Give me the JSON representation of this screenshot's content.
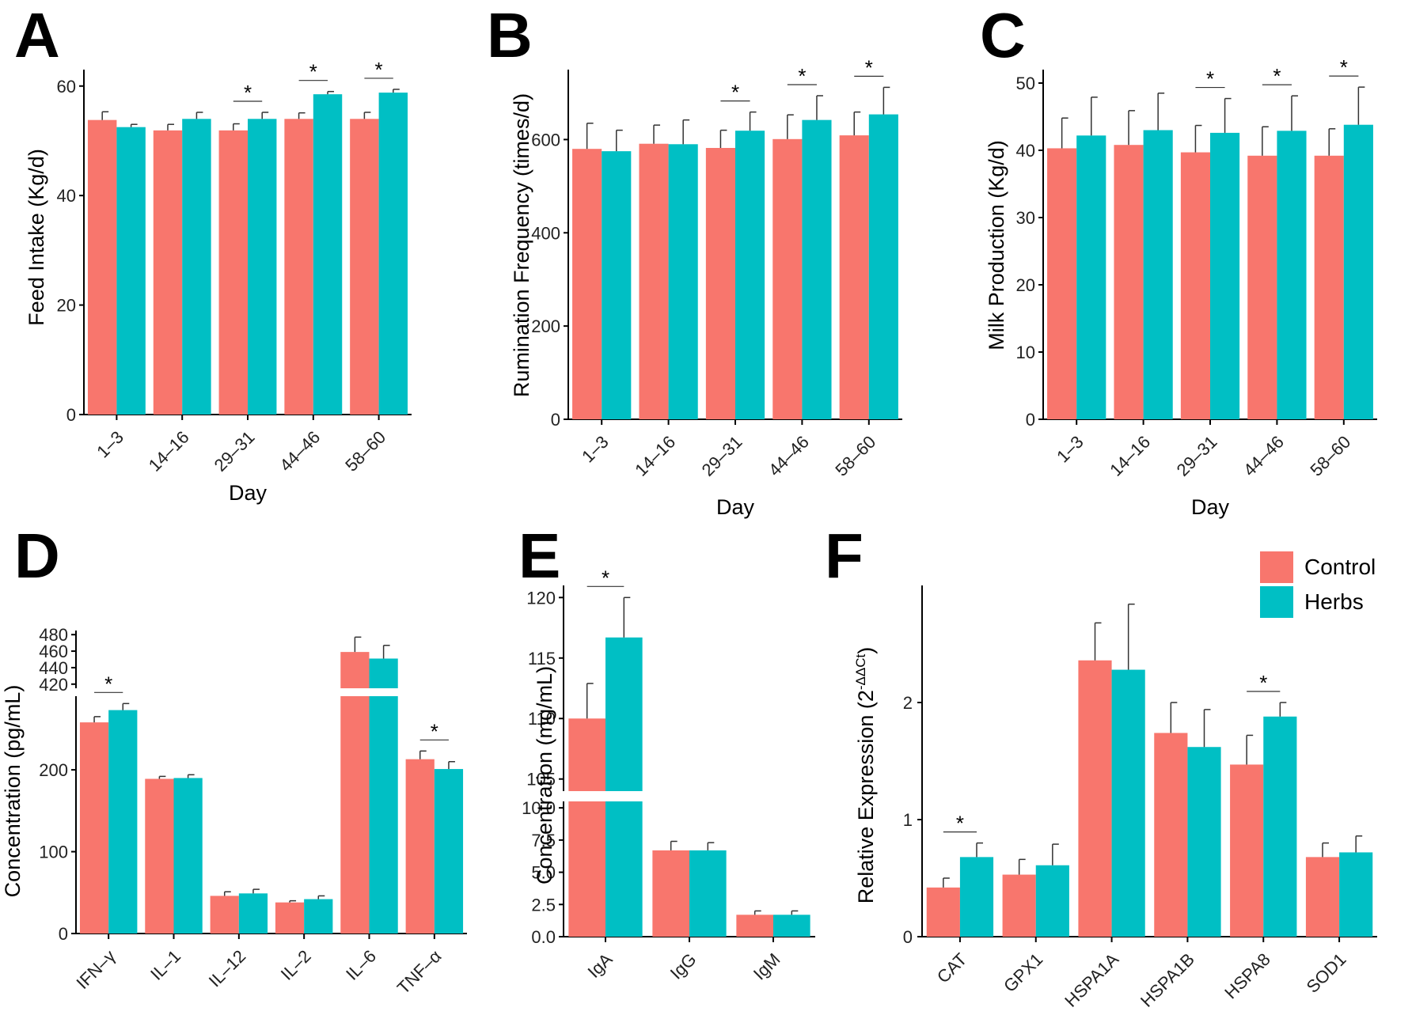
{
  "legend": {
    "position": "top-right",
    "items": [
      {
        "label": "Control",
        "color": "#F8766D"
      },
      {
        "label": "Herbs",
        "color": "#00BFC4"
      }
    ]
  },
  "chart_data": [
    {
      "panel": "A",
      "type": "bar",
      "xlabel": "Day",
      "ylabel": "Feed Intake (Kg/d)",
      "categories": [
        "1–3",
        "14–16",
        "29–31",
        "44–46",
        "58–60"
      ],
      "ylim": [
        0,
        63
      ],
      "yticks": [
        0,
        20,
        40,
        60
      ],
      "tick_labels_rotated": true,
      "series": [
        {
          "name": "Control",
          "values": [
            53.8,
            51.9,
            51.9,
            54.0,
            54.0
          ],
          "errors": [
            1.5,
            1.1,
            1.2,
            1.1,
            1.2
          ]
        },
        {
          "name": "Herbs",
          "values": [
            52.5,
            54.0,
            54.0,
            58.5,
            58.8
          ],
          "errors": [
            0.5,
            1.2,
            1.2,
            0.5,
            0.6
          ]
        }
      ],
      "significance": [
        {
          "category": "29–31",
          "label": "*"
        },
        {
          "category": "44–46",
          "label": "*"
        },
        {
          "category": "58–60",
          "label": "*"
        }
      ]
    },
    {
      "panel": "B",
      "type": "bar",
      "xlabel": "Day",
      "ylabel": "Rumination Frequency (times/d)",
      "categories": [
        "1–3",
        "14–16",
        "29–31",
        "44–46",
        "58–60"
      ],
      "ylim": [
        0,
        750
      ],
      "yticks": [
        0,
        200,
        400,
        600
      ],
      "tick_labels_rotated": true,
      "series": [
        {
          "name": "Control",
          "values": [
            580,
            591,
            582,
            601,
            609
          ],
          "errors": [
            55,
            40,
            38,
            52,
            50
          ]
        },
        {
          "name": "Herbs",
          "values": [
            575,
            590,
            619,
            642,
            654
          ],
          "errors": [
            45,
            52,
            40,
            52,
            58
          ]
        }
      ],
      "significance": [
        {
          "category": "29–31",
          "label": "*"
        },
        {
          "category": "44–46",
          "label": "*"
        },
        {
          "category": "58–60",
          "label": "*"
        }
      ]
    },
    {
      "panel": "C",
      "type": "bar",
      "xlabel": "Day",
      "ylabel": "Milk Production (Kg/d)",
      "categories": [
        "1–3",
        "14–16",
        "29–31",
        "44–46",
        "58–60"
      ],
      "ylim": [
        0,
        52
      ],
      "yticks": [
        0,
        10,
        20,
        30,
        40,
        50
      ],
      "tick_labels_rotated": true,
      "series": [
        {
          "name": "Control",
          "values": [
            40.3,
            40.8,
            39.7,
            39.2,
            39.2
          ],
          "errors": [
            4.5,
            5.1,
            4.0,
            4.3,
            4.0
          ]
        },
        {
          "name": "Herbs",
          "values": [
            42.2,
            43.0,
            42.6,
            42.9,
            43.8
          ],
          "errors": [
            5.7,
            5.5,
            5.1,
            5.2,
            5.6
          ]
        }
      ],
      "significance": [
        {
          "category": "29–31",
          "label": "*"
        },
        {
          "category": "44–46",
          "label": "*"
        },
        {
          "category": "58–60",
          "label": "*"
        }
      ]
    },
    {
      "panel": "D",
      "type": "bar",
      "ylabel": "Concentration (pg/mL)",
      "axis_break": true,
      "categories": [
        "IFN–γ",
        "IL–1",
        "IL–12",
        "IL–2",
        "IL–6",
        "TNF–α"
      ],
      "ylim_lower": [
        0,
        290
      ],
      "yticks_lower": [
        0,
        100,
        200
      ],
      "ylim_upper": [
        415,
        485
      ],
      "yticks_upper": [
        420,
        440,
        460,
        480
      ],
      "tick_labels_rotated": true,
      "series": [
        {
          "name": "Control",
          "values": [
            258,
            189,
            46,
            38,
            459,
            213
          ],
          "errors": [
            7,
            3,
            5,
            2,
            18,
            10
          ]
        },
        {
          "name": "Herbs",
          "values": [
            273,
            190,
            49,
            42,
            451,
            201
          ],
          "errors": [
            8,
            4,
            5,
            4,
            16,
            9
          ]
        }
      ],
      "significance": [
        {
          "category": "IFN–γ",
          "label": "*"
        },
        {
          "category": "TNF–α",
          "label": "*"
        }
      ]
    },
    {
      "panel": "E",
      "type": "bar",
      "ylabel": "Concentration (mg/mL)",
      "axis_break": true,
      "categories": [
        "IgA",
        "IgG",
        "IgM"
      ],
      "ylim_lower": [
        0,
        10.5
      ],
      "yticks_lower": [
        "0.0",
        "2.5",
        "5.0",
        "7.5",
        "10.0"
      ],
      "ylim_upper": [
        104,
        121
      ],
      "yticks_upper": [
        "105",
        "110",
        "115",
        "120"
      ],
      "tick_labels_rotated": true,
      "series": [
        {
          "name": "Control",
          "values": [
            110.0,
            6.7,
            1.7
          ],
          "errors": [
            2.9,
            0.7,
            0.3
          ]
        },
        {
          "name": "Herbs",
          "values": [
            116.7,
            6.7,
            1.7
          ],
          "errors": [
            3.3,
            0.6,
            0.3
          ]
        }
      ],
      "significance": [
        {
          "category": "IgA",
          "label": "*"
        }
      ]
    },
    {
      "panel": "F",
      "type": "bar",
      "ylabel": "Relative Expression (2",
      "ylabel_superscript": "-ΔΔCt",
      "ylabel_suffix": ")",
      "categories": [
        "CAT",
        "GPX1",
        "HSPA1A",
        "HSPA1B",
        "HSPA8",
        "SOD1"
      ],
      "ylim": [
        0,
        3.0
      ],
      "yticks": [
        0,
        1,
        2
      ],
      "tick_labels_rotated": true,
      "series": [
        {
          "name": "Control",
          "values": [
            0.42,
            0.53,
            2.36,
            1.74,
            1.47,
            0.68
          ],
          "errors": [
            0.08,
            0.13,
            0.32,
            0.26,
            0.25,
            0.12
          ]
        },
        {
          "name": "Herbs",
          "values": [
            0.68,
            0.61,
            2.28,
            1.62,
            1.88,
            0.72
          ],
          "errors": [
            0.12,
            0.18,
            0.56,
            0.32,
            0.12,
            0.14
          ]
        }
      ],
      "significance": [
        {
          "category": "CAT",
          "label": "*"
        },
        {
          "category": "HSPA8",
          "label": "*"
        }
      ]
    }
  ]
}
